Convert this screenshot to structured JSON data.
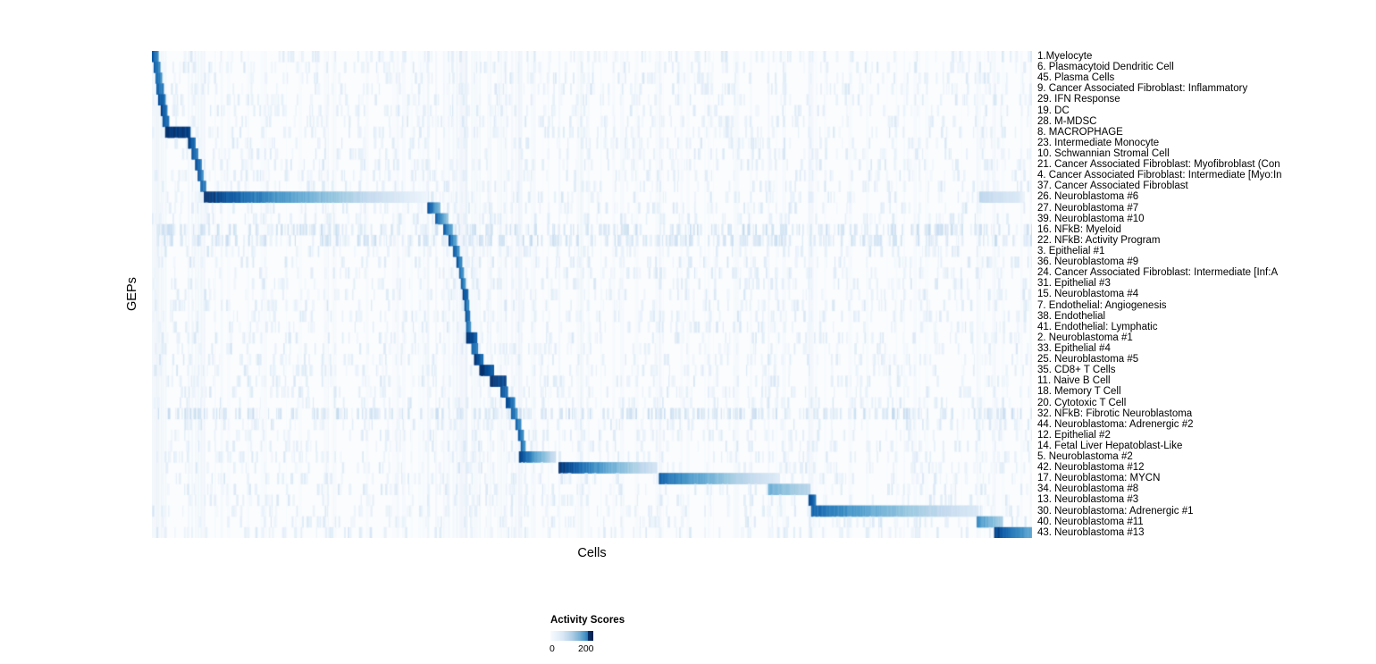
{
  "figure": {
    "xlabel": "Cells",
    "ylabel": "GEPs"
  },
  "chart_data": {
    "type": "heatmap",
    "title": "",
    "xlabel": "Cells",
    "ylabel": "GEPs",
    "grid": false,
    "x_tick_labels": "none",
    "legend_position": "bottom-left-of-center",
    "legend": {
      "title": "Activity Scores",
      "min_label": "0",
      "max_label": "200",
      "range": [
        0,
        200
      ]
    },
    "colormap": [
      "#f7fbff",
      "#deebf7",
      "#c6dbef",
      "#9ecae1",
      "#6baed6",
      "#4292c6",
      "#2171b5",
      "#08519c",
      "#08306b"
    ],
    "score_scale_max": 250,
    "n_rows": 45,
    "noise_seed": 20240709,
    "rows": [
      {
        "label": "1.Myelocyte",
        "blocks": [
          {
            "start": 0.0,
            "end": 0.007,
            "peak": 210,
            "tail": 170
          }
        ]
      },
      {
        "label": "6. Plasmacytoid Dendritic Cell",
        "blocks": [
          {
            "start": 0.002,
            "end": 0.009,
            "peak": 205,
            "tail": 160
          }
        ]
      },
      {
        "label": "45. Plasma Cells",
        "blocks": [
          {
            "start": 0.004,
            "end": 0.011,
            "peak": 200,
            "tail": 160
          }
        ]
      },
      {
        "label": "9. Cancer Associated Fibroblast: Inflammatory",
        "blocks": [
          {
            "start": 0.005,
            "end": 0.013,
            "peak": 210,
            "tail": 165
          }
        ]
      },
      {
        "label": "29. IFN Response",
        "blocks": [
          {
            "start": 0.007,
            "end": 0.015,
            "peak": 230,
            "tail": 180
          }
        ]
      },
      {
        "label": "19. DC",
        "blocks": [
          {
            "start": 0.01,
            "end": 0.017,
            "peak": 230,
            "tail": 180
          }
        ]
      },
      {
        "label": "28. M-MDSC",
        "blocks": [
          {
            "start": 0.012,
            "end": 0.019,
            "peak": 225,
            "tail": 175
          }
        ]
      },
      {
        "label": "8. MACROPHAGE",
        "blocks": [
          {
            "start": 0.015,
            "end": 0.043,
            "peak": 250,
            "tail": 235
          }
        ]
      },
      {
        "label": "23. Intermediate Monocyte",
        "blocks": [
          {
            "start": 0.041,
            "end": 0.049,
            "peak": 235,
            "tail": 185
          }
        ]
      },
      {
        "label": "10. Schwannian Stromal Cell",
        "blocks": [
          {
            "start": 0.045,
            "end": 0.052,
            "peak": 225,
            "tail": 180
          }
        ]
      },
      {
        "label": "21. Cancer Associated Fibroblast: Myofibroblast (Con",
        "blocks": [
          {
            "start": 0.049,
            "end": 0.056,
            "peak": 230,
            "tail": 180
          }
        ]
      },
      {
        "label": "4. Cancer Associated Fibroblast: Intermediate [Myo:In",
        "blocks": [
          {
            "start": 0.052,
            "end": 0.058,
            "peak": 220,
            "tail": 175
          }
        ]
      },
      {
        "label": "37. Cancer Associated Fibroblast",
        "blocks": [
          {
            "start": 0.055,
            "end": 0.061,
            "peak": 205,
            "tail": 165
          }
        ]
      },
      {
        "label": "26. Neuroblastoma #6",
        "blocks": [
          {
            "start": 0.059,
            "end": 0.313,
            "peak": 252,
            "tail": 12
          },
          {
            "start": 0.94,
            "end": 0.986,
            "peak": 70,
            "tail": 35
          }
        ]
      },
      {
        "label": "27. Neuroblastoma #7",
        "blocks": [
          {
            "start": 0.313,
            "end": 0.327,
            "peak": 242,
            "tail": 110
          }
        ]
      },
      {
        "label": "39. Neuroblastoma #10",
        "blocks": [
          {
            "start": 0.322,
            "end": 0.336,
            "peak": 232,
            "tail": 100
          }
        ]
      },
      {
        "label": "16. NFkB: Myeloid",
        "blocks": [
          {
            "start": 0.331,
            "end": 0.341,
            "peak": 215,
            "tail": 130
          }
        ],
        "diffuse": true
      },
      {
        "label": "22. NFkB: Activity Program",
        "blocks": [
          {
            "start": 0.337,
            "end": 0.346,
            "peak": 222,
            "tail": 130
          }
        ],
        "diffuse": true
      },
      {
        "label": "3. Epithelial #1",
        "blocks": [
          {
            "start": 0.342,
            "end": 0.349,
            "peak": 212,
            "tail": 150
          }
        ]
      },
      {
        "label": "36. Neuroblastoma #9",
        "blocks": [
          {
            "start": 0.346,
            "end": 0.352,
            "peak": 220,
            "tail": 160
          }
        ]
      },
      {
        "label": "24. Cancer Associated Fibroblast: Intermediate [Inf:A",
        "blocks": [
          {
            "start": 0.349,
            "end": 0.354,
            "peak": 205,
            "tail": 150
          }
        ]
      },
      {
        "label": "31. Epithelial #3",
        "blocks": [
          {
            "start": 0.351,
            "end": 0.356,
            "peak": 205,
            "tail": 150
          }
        ]
      },
      {
        "label": "15. Neuroblastoma #4",
        "blocks": [
          {
            "start": 0.353,
            "end": 0.359,
            "peak": 240,
            "tail": 180
          }
        ]
      },
      {
        "label": "7. Endothelial: Angiogenesis",
        "blocks": [
          {
            "start": 0.355,
            "end": 0.36,
            "peak": 210,
            "tail": 160
          }
        ]
      },
      {
        "label": "38. Endothelial",
        "blocks": [
          {
            "start": 0.356,
            "end": 0.361,
            "peak": 230,
            "tail": 180
          }
        ]
      },
      {
        "label": "41. Endothelial: Lymphatic",
        "blocks": [
          {
            "start": 0.357,
            "end": 0.362,
            "peak": 210,
            "tail": 160
          }
        ]
      },
      {
        "label": "2. Neuroblastoma #1",
        "blocks": [
          {
            "start": 0.357,
            "end": 0.369,
            "peak": 250,
            "tail": 205
          }
        ]
      },
      {
        "label": "33. Epithelial #4",
        "blocks": [
          {
            "start": 0.363,
            "end": 0.37,
            "peak": 212,
            "tail": 165
          }
        ]
      },
      {
        "label": "25. Neuroblastoma #5",
        "blocks": [
          {
            "start": 0.366,
            "end": 0.376,
            "peak": 240,
            "tail": 190
          }
        ]
      },
      {
        "label": "35. CD8+ T Cells",
        "blocks": [
          {
            "start": 0.372,
            "end": 0.388,
            "peak": 246,
            "tail": 215
          }
        ]
      },
      {
        "label": "11. Naive B Cell",
        "blocks": [
          {
            "start": 0.384,
            "end": 0.402,
            "peak": 252,
            "tail": 230
          }
        ]
      },
      {
        "label": "18. Memory T Cell",
        "blocks": [
          {
            "start": 0.396,
            "end": 0.404,
            "peak": 228,
            "tail": 175
          }
        ]
      },
      {
        "label": "20. Cytotoxic T Cell",
        "blocks": [
          {
            "start": 0.402,
            "end": 0.412,
            "peak": 230,
            "tail": 175
          }
        ]
      },
      {
        "label": "32. NFkB: Fibrotic Neuroblastoma",
        "blocks": [
          {
            "start": 0.408,
            "end": 0.415,
            "peak": 212,
            "tail": 160
          }
        ],
        "diffuse": true
      },
      {
        "label": "44. Neuroblastoma: Adrenergic #2",
        "blocks": [
          {
            "start": 0.413,
            "end": 0.419,
            "peak": 205,
            "tail": 155
          }
        ]
      },
      {
        "label": "12. Epithelial #2",
        "blocks": [
          {
            "start": 0.416,
            "end": 0.422,
            "peak": 210,
            "tail": 160
          }
        ]
      },
      {
        "label": "14. Fetal Liver Hepatoblast-Like",
        "blocks": [
          {
            "start": 0.419,
            "end": 0.424,
            "peak": 205,
            "tail": 155
          }
        ]
      },
      {
        "label": "5. Neuroblastoma #2",
        "blocks": [
          {
            "start": 0.417,
            "end": 0.459,
            "peak": 238,
            "tail": 55
          }
        ]
      },
      {
        "label": "42. Neuroblastoma #12",
        "blocks": [
          {
            "start": 0.462,
            "end": 0.574,
            "peak": 250,
            "tail": 45
          }
        ]
      },
      {
        "label": "17. Neuroblastoma: MYCN",
        "blocks": [
          {
            "start": 0.576,
            "end": 0.713,
            "peak": 205,
            "tail": 30
          }
        ]
      },
      {
        "label": "34. Neuroblastoma #8",
        "blocks": [
          {
            "start": 0.7,
            "end": 0.748,
            "peak": 125,
            "tail": 70
          }
        ]
      },
      {
        "label": "13. Neuroblastoma #3",
        "blocks": [
          {
            "start": 0.746,
            "end": 0.754,
            "peak": 232,
            "tail": 180
          }
        ]
      },
      {
        "label": "30. Neuroblastoma: Adrenergic #1",
        "blocks": [
          {
            "start": 0.749,
            "end": 0.939,
            "peak": 200,
            "tail": 35
          }
        ]
      },
      {
        "label": "40. Neuroblastoma #11",
        "blocks": [
          {
            "start": 0.937,
            "end": 0.966,
            "peak": 160,
            "tail": 85
          }
        ]
      },
      {
        "label": "43. Neuroblastoma #13",
        "blocks": [
          {
            "start": 0.957,
            "end": 1.0,
            "peak": 240,
            "tail": 130
          }
        ]
      }
    ]
  }
}
